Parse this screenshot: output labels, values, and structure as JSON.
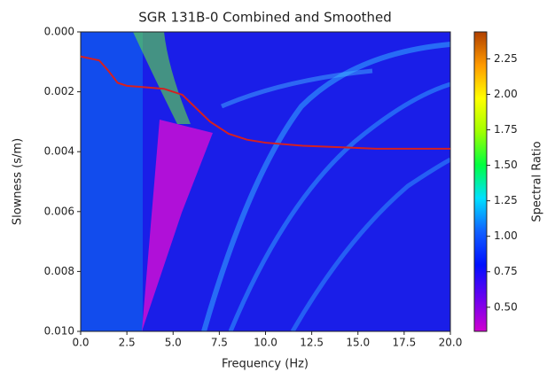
{
  "chart_data": {
    "type": "line",
    "title": "SGR 131B-0 Combined and Smoothed",
    "x_label": "Frequency (Hz)",
    "y_label": "Slowness (s/m)",
    "xlim": [
      0,
      20
    ],
    "xticks": [
      {
        "value": 0,
        "label": "0.0"
      },
      2.5,
      {
        "value": 5,
        "label": "5.0"
      },
      7.5,
      {
        "value": 10,
        "label": "10.0"
      },
      12.5,
      {
        "value": 15,
        "label": "15.0"
      },
      17.5,
      {
        "value": 20,
        "label": "20.0"
      }
    ],
    "ylim": [
      0,
      0.01
    ],
    "y_inverted": true,
    "yticks": [
      {
        "value": 0,
        "label": "0.000"
      },
      {
        "value": 0.002,
        "label": "0.002"
      },
      {
        "value": 0.004,
        "label": "0.004"
      },
      {
        "value": 0.006,
        "label": "0.006"
      },
      {
        "value": 0.008,
        "label": "0.008"
      },
      {
        "value": 0.01,
        "label": "0.010"
      }
    ],
    "x": [
      0,
      1,
      1.5,
      2,
      2.5,
      3.5,
      4.5,
      5.5,
      6,
      7,
      8,
      9,
      10,
      12,
      14,
      16,
      18,
      20
    ],
    "series": [
      {
        "color": "#d62020",
        "values": [
          0.00082,
          0.00095,
          0.0013,
          0.0017,
          0.0018,
          0.00185,
          0.0019,
          0.0021,
          0.0024,
          0.003,
          0.0034,
          0.0036,
          0.0037,
          0.0038,
          0.00385,
          0.0039,
          0.0039,
          0.0039
        ]
      }
    ],
    "colorbar": {
      "label": "Spectral Ratio",
      "lim": [
        0.33,
        2.44
      ],
      "ticks": [
        {
          "value": 0.5,
          "label": "0.50"
        },
        0.75,
        {
          "value": 1,
          "label": "1.00"
        },
        1.25,
        {
          "value": 1.5,
          "label": "1.50"
        },
        1.75,
        {
          "value": 2,
          "label": "2.00"
        },
        2.25
      ],
      "colors": [
        "#d000d0",
        "#6a00f0",
        "#0010ff",
        "#1060ff",
        "#00e0ff",
        "#00ff40",
        "#a0ff00",
        "#ffff00",
        "#ff9a00",
        "#b04000"
      ]
    }
  }
}
